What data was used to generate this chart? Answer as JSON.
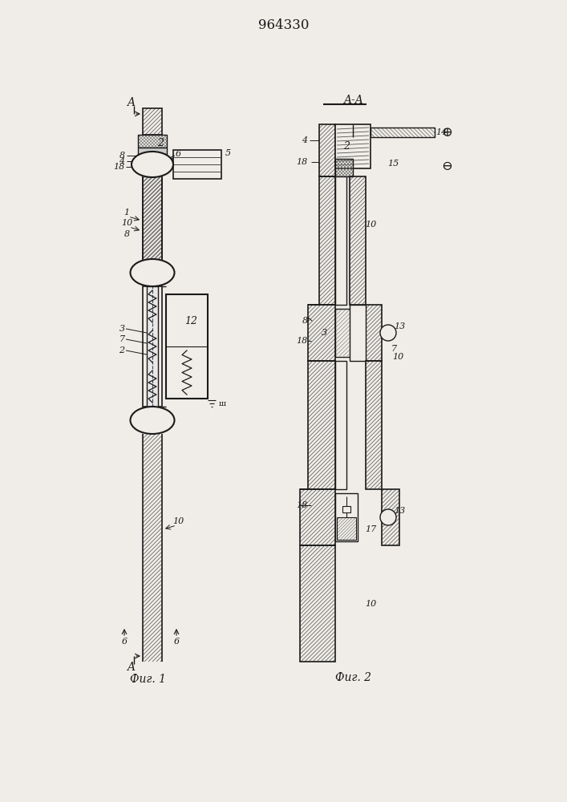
{
  "title": "964330",
  "bg_color": "#f0ede8",
  "line_color": "#1a1a1a",
  "fig1_caption": "Фиг. 1",
  "fig2_caption": "Фиг. 2",
  "fig2_aa_label": "A-A"
}
